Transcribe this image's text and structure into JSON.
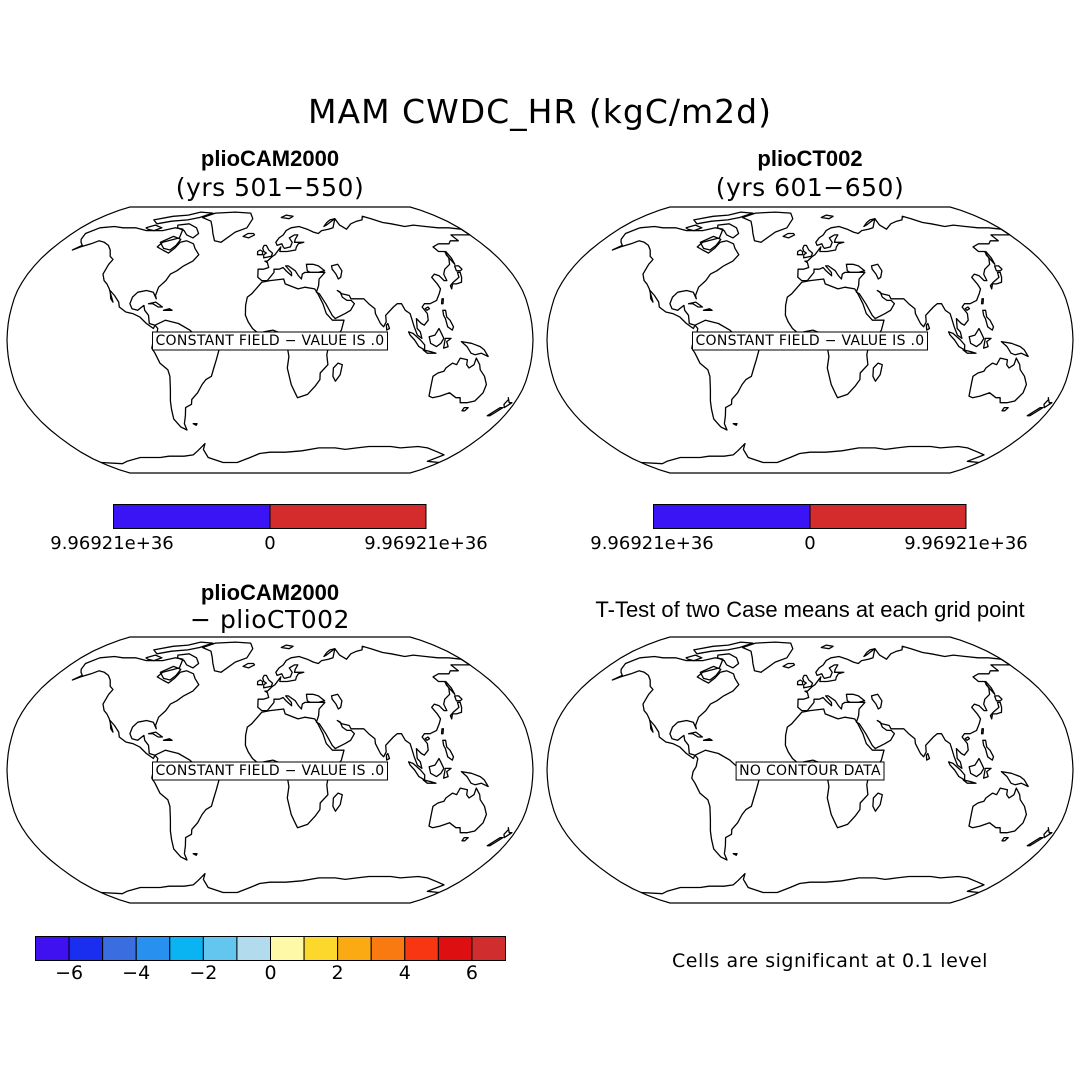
{
  "title": "MAM CWDC_HR (kgC/m2d)",
  "panels": [
    {
      "title": "plioCAM2000",
      "subtitle": "(yrs 501−550)",
      "message": "CONSTANT FIELD − VALUE IS .0"
    },
    {
      "title": "plioCT002",
      "subtitle": "(yrs 601−650)",
      "message": "CONSTANT FIELD − VALUE IS .0"
    },
    {
      "title": "plioCAM2000",
      "subtitle": "− plioCT002",
      "message": "CONSTANT FIELD − VALUE IS .0"
    },
    {
      "title": "T-Test of two Case means at each grid point",
      "subtitle": "",
      "message": "NO CONTOUR DATA"
    }
  ],
  "colorbars": {
    "top": {
      "colors": [
        "#3a14f5",
        "#d42c2c"
      ],
      "labels": [
        "9.96921e+36",
        "0",
        "9.96921e+36"
      ]
    },
    "diff": {
      "colors": [
        "#3f10f0",
        "#1a2ef0",
        "#3a6ee0",
        "#2891f0",
        "#0ab4f2",
        "#62c6ef",
        "#b2dcee",
        "#fef9a6",
        "#fdd82c",
        "#fbaa14",
        "#f97a10",
        "#f83612",
        "#de0f10",
        "#d02e2e"
      ],
      "labels": [
        "−6",
        "−4",
        "−2",
        "0",
        "2",
        "4",
        "6"
      ]
    }
  },
  "significance_note": "Cells are significant at 0.1 level"
}
